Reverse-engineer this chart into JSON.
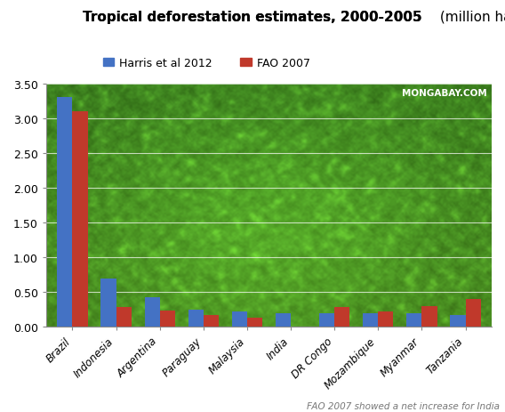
{
  "title_bold": "Tropical deforestation estimates, 2000-2005",
  "title_normal": " (million ha/yr)",
  "categories": [
    "Brazil",
    "Indonesia",
    "Argentina",
    "Paraguay",
    "Malaysia",
    "India",
    "DR Congo",
    "Mozambique",
    "Myanmar",
    "Tanzania"
  ],
  "harris_values": [
    3.3,
    0.7,
    0.42,
    0.25,
    0.22,
    0.2,
    0.2,
    0.2,
    0.19,
    0.17
  ],
  "fao_values": [
    3.1,
    0.28,
    0.24,
    0.17,
    0.13,
    0.0,
    0.28,
    0.22,
    0.3,
    0.4
  ],
  "harris_color": "#4472C4",
  "fao_color": "#C0392B",
  "ylim": [
    0.0,
    3.5
  ],
  "yticks": [
    0.0,
    0.5,
    1.0,
    1.5,
    2.0,
    2.5,
    3.0,
    3.5
  ],
  "legend_harris": "Harris et al 2012",
  "legend_fao": "FAO 2007",
  "watermark": "MONGABAY.COM",
  "footnote": "FAO 2007 showed a net increase for India",
  "bar_width": 0.35,
  "figsize": [
    5.68,
    4.64
  ],
  "dpi": 100
}
